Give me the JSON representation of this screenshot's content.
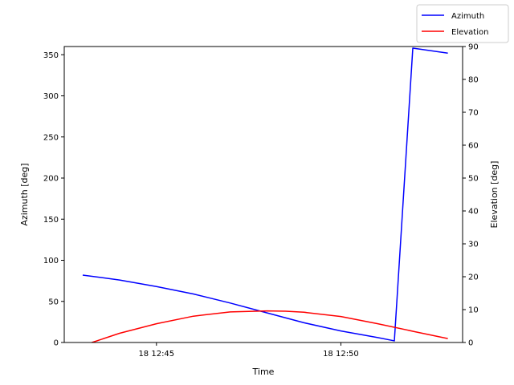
{
  "chart_data": {
    "type": "line",
    "title": "",
    "xlabel": "Time",
    "ylabel_left": "Azimuth [deg]",
    "ylabel_right": "Elevation [deg]",
    "x_unit": "minutes after 18 12:40",
    "xlim": [
      42.5,
      53.3
    ],
    "ylim_left": [
      0,
      360
    ],
    "ylim_right": [
      0,
      90
    ],
    "x_ticks": [
      {
        "value": 45,
        "label": "18 12:45"
      },
      {
        "value": 50,
        "label": "18 12:50"
      }
    ],
    "y_ticks_left": [
      0,
      50,
      100,
      150,
      200,
      250,
      300,
      350
    ],
    "y_ticks_right": [
      0,
      10,
      20,
      30,
      40,
      50,
      60,
      70,
      80,
      90
    ],
    "legend_position": "top-right",
    "series": [
      {
        "name": "Azimuth",
        "color": "#0000ff",
        "axis": "left",
        "points": [
          [
            43.0,
            82
          ],
          [
            44.0,
            76
          ],
          [
            45.0,
            68
          ],
          [
            46.0,
            59
          ],
          [
            47.0,
            48
          ],
          [
            48.0,
            36
          ],
          [
            49.0,
            24
          ],
          [
            50.0,
            14
          ],
          [
            51.0,
            6
          ],
          [
            51.45,
            2
          ],
          [
            51.95,
            358
          ],
          [
            52.9,
            352
          ]
        ]
      },
      {
        "name": "Elevation",
        "color": "#ff0000",
        "axis": "right",
        "points": [
          [
            43.25,
            0
          ],
          [
            44.0,
            2.8
          ],
          [
            45.0,
            5.7
          ],
          [
            46.0,
            8.0
          ],
          [
            47.0,
            9.3
          ],
          [
            48.0,
            9.6
          ],
          [
            48.5,
            9.5
          ],
          [
            49.0,
            9.2
          ],
          [
            50.0,
            7.9
          ],
          [
            51.0,
            5.7
          ],
          [
            52.0,
            3.3
          ],
          [
            52.9,
            1.2
          ]
        ]
      }
    ]
  }
}
